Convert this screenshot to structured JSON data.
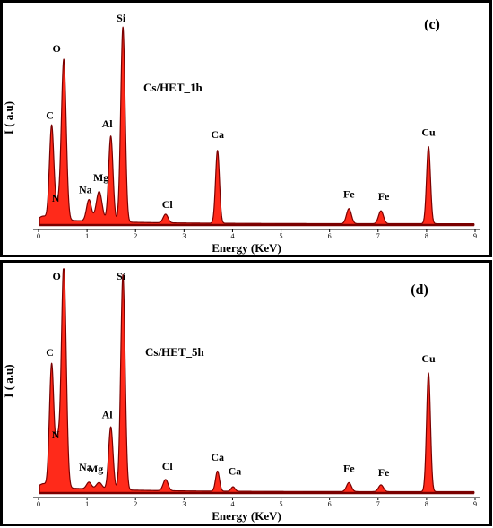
{
  "chart_data": [
    {
      "type": "line",
      "panel_label": "(c)",
      "sample_label": "Cs/HET_1h",
      "xlabel": "Energy (KeV)",
      "ylabel": "I ( a.u)",
      "xlim": [
        0,
        9
      ],
      "x_ticks": [
        "0",
        "1",
        "2",
        "3",
        "4",
        "5",
        "6",
        "7",
        "8",
        "9"
      ],
      "ylim": [
        0,
        100
      ],
      "grid": false,
      "fill_color": "#ff2a1a",
      "edge_color": "#7a0000",
      "peaks": [
        {
          "element": "C",
          "x": 0.27,
          "height": 44
        },
        {
          "element": "N",
          "x": 0.39,
          "height": 6
        },
        {
          "element": "O",
          "x": 0.52,
          "height": 75
        },
        {
          "element": "Na",
          "x": 1.04,
          "height": 10
        },
        {
          "element": "Mg",
          "x": 1.25,
          "height": 14
        },
        {
          "element": "Al",
          "x": 1.49,
          "height": 40
        },
        {
          "element": "Si",
          "x": 1.74,
          "height": 91
        },
        {
          "element": "Cl",
          "x": 2.62,
          "height": 4
        },
        {
          "element": "Ca",
          "x": 3.69,
          "height": 34
        },
        {
          "element": "Fe",
          "x": 6.4,
          "height": 7
        },
        {
          "element": "Fe",
          "x": 7.06,
          "height": 6
        },
        {
          "element": "Cu",
          "x": 8.04,
          "height": 36
        }
      ]
    },
    {
      "type": "line",
      "panel_label": "(d)",
      "sample_label": "Cs/HET_5h",
      "xlabel": "Energy (KeV)",
      "ylabel": "I ( a.u)",
      "xlim": [
        0,
        9
      ],
      "x_ticks": [
        "0",
        "1",
        "2",
        "3",
        "4",
        "5",
        "6",
        "7",
        "8",
        "9"
      ],
      "ylim": [
        0,
        100
      ],
      "grid": false,
      "fill_color": "#ff2a1a",
      "edge_color": "#7a0000",
      "peaks": [
        {
          "element": "C",
          "x": 0.27,
          "height": 55
        },
        {
          "element": "N",
          "x": 0.39,
          "height": 19
        },
        {
          "element": "O",
          "x": 0.52,
          "height": 100
        },
        {
          "element": "Na",
          "x": 1.04,
          "height": 3
        },
        {
          "element": "Mg",
          "x": 1.25,
          "height": 3
        },
        {
          "element": "Al",
          "x": 1.49,
          "height": 28
        },
        {
          "element": "Si",
          "x": 1.74,
          "height": 96
        },
        {
          "element": "Cl",
          "x": 2.62,
          "height": 5
        },
        {
          "element": "Ca",
          "x": 3.69,
          "height": 9
        },
        {
          "element": "Ca",
          "x": 4.01,
          "height": 2
        },
        {
          "element": "Fe",
          "x": 6.4,
          "height": 4
        },
        {
          "element": "Fe",
          "x": 7.06,
          "height": 3
        },
        {
          "element": "Cu",
          "x": 8.04,
          "height": 53
        }
      ]
    }
  ]
}
